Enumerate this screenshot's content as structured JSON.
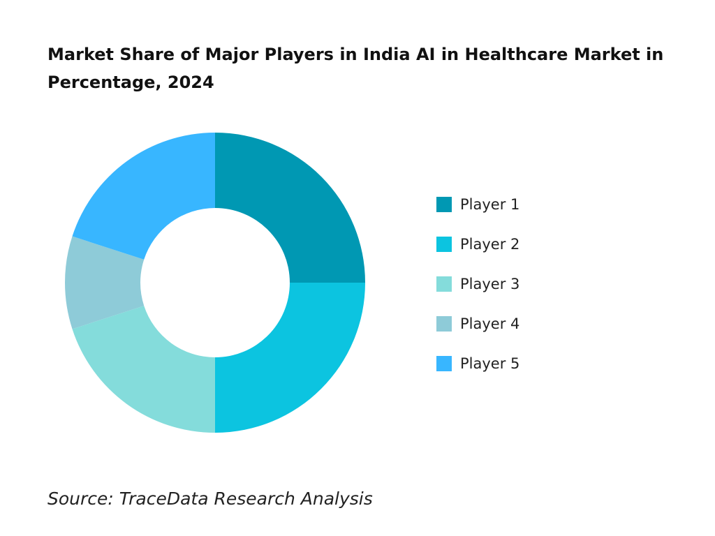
{
  "chart_data": {
    "type": "donut",
    "title": "Market Share of Major Players in India AI in Healthcare Market in Percentage, 2024",
    "categories": [
      "Player 1",
      "Player 2",
      "Player 3",
      "Player 4",
      "Player 5"
    ],
    "values": [
      25,
      25,
      20,
      10,
      20
    ],
    "colors": [
      "#0098b3",
      "#0cc4e0",
      "#84dcdb",
      "#8ecbd8",
      "#38b6ff"
    ],
    "legend": "right",
    "source": "Source: TraceData Research Analysis"
  }
}
